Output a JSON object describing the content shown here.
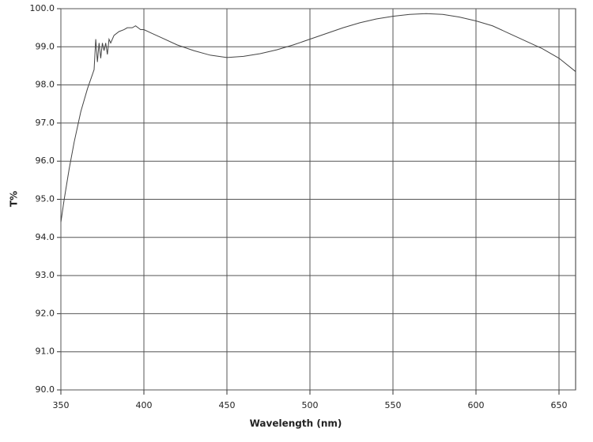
{
  "chart_data": {
    "type": "line",
    "xlabel": "Wavelength (nm)",
    "ylabel": "T%",
    "x": [
      350,
      352,
      355,
      358,
      362,
      366,
      370,
      371,
      372,
      373,
      374,
      375,
      376,
      377,
      378,
      379,
      380,
      382,
      385,
      388,
      390,
      393,
      395,
      398,
      400,
      405,
      410,
      420,
      430,
      440,
      450,
      460,
      470,
      480,
      490,
      500,
      510,
      520,
      530,
      540,
      550,
      560,
      570,
      580,
      590,
      600,
      610,
      620,
      630,
      640,
      650,
      660
    ],
    "series": [
      {
        "color": "#444444",
        "values": [
          94.4,
          95.0,
          95.8,
          96.5,
          97.3,
          97.9,
          98.4,
          99.2,
          98.6,
          99.1,
          98.7,
          99.1,
          98.9,
          99.1,
          98.8,
          99.2,
          99.1,
          99.3,
          99.4,
          99.45,
          99.5,
          99.5,
          99.55,
          99.45,
          99.45,
          99.35,
          99.25,
          99.05,
          98.9,
          98.78,
          98.72,
          98.75,
          98.82,
          98.92,
          99.05,
          99.2,
          99.35,
          99.5,
          99.63,
          99.73,
          99.8,
          99.85,
          99.87,
          99.85,
          99.78,
          99.68,
          99.55,
          99.35,
          99.15,
          98.95,
          98.7,
          98.35
        ]
      }
    ],
    "xlim": [
      350,
      660
    ],
    "xticks": [
      350,
      400,
      450,
      500,
      550,
      600,
      650
    ],
    "ylim": [
      90,
      100
    ],
    "yticks": [
      {
        "value": 90,
        "label": "90.0"
      },
      {
        "value": 91,
        "label": "91.0"
      },
      {
        "value": 92,
        "label": "92.0"
      },
      {
        "value": 93,
        "label": "93.0"
      },
      {
        "value": 94,
        "label": "94.0"
      },
      {
        "value": 95,
        "label": "95.0"
      },
      {
        "value": 96,
        "label": "96.0"
      },
      {
        "value": 97,
        "label": "97.0"
      },
      {
        "value": 98,
        "label": "98.0"
      },
      {
        "value": 99,
        "label": "99.0"
      },
      {
        "value": 100,
        "label": "100.0"
      }
    ],
    "grid": true
  }
}
